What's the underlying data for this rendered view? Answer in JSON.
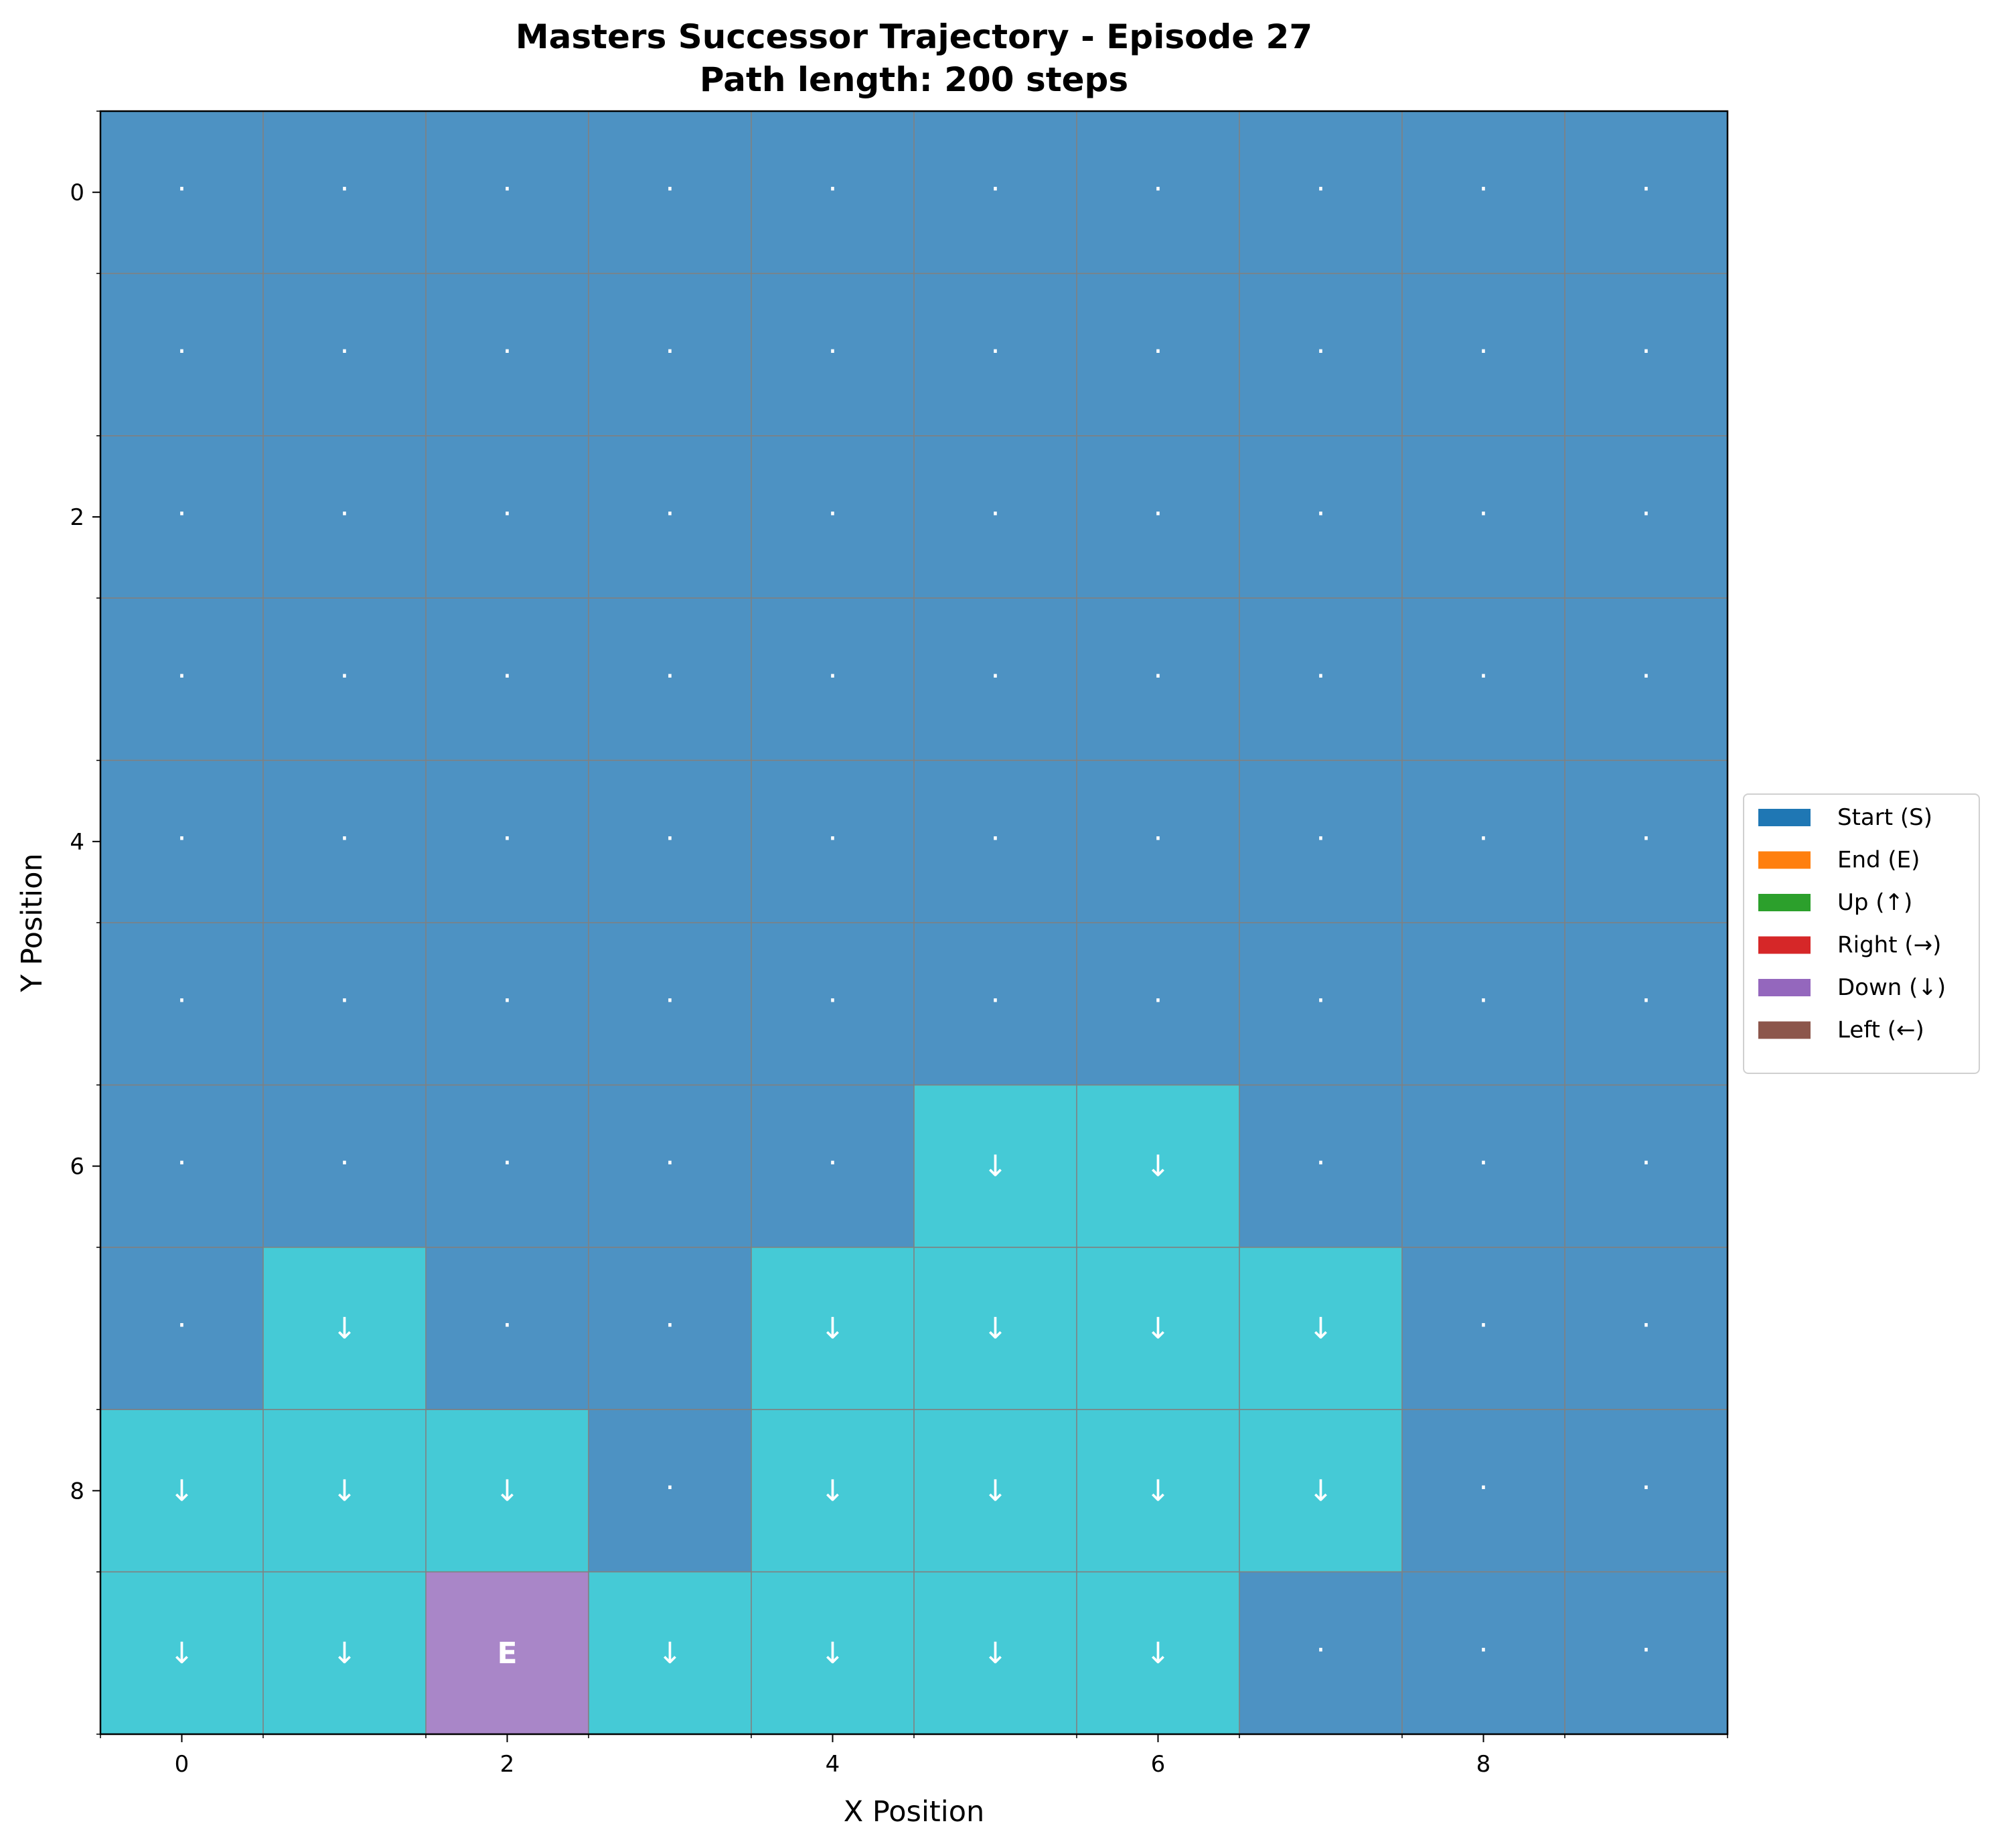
{
  "chart_data": {
    "type": "heatmap",
    "title_lines": [
      "Masters Successor Trajectory - Episode 27",
      "Path length: 200 steps"
    ],
    "xlabel": "X Position",
    "ylabel": "Y Position",
    "x_ticks": [
      "0",
      "2",
      "4",
      "6",
      "8"
    ],
    "y_ticks": [
      "0",
      "2",
      "4",
      "6",
      "8"
    ],
    "x_range": [
      -0.5,
      9.5
    ],
    "y_range": [
      -0.5,
      9.5
    ],
    "y_axis_direction": "top-to-bottom",
    "grid": true,
    "cell_glyphs": {
      "unvisited": "·",
      "down": "↓",
      "end": "E"
    },
    "cell_colors": {
      "unvisited": "#4d92c3",
      "path": "#45cad6",
      "end": "#a986c8"
    },
    "grid_cells": [
      [
        ".",
        ".",
        ".",
        ".",
        ".",
        ".",
        ".",
        ".",
        ".",
        "."
      ],
      [
        ".",
        ".",
        ".",
        ".",
        ".",
        ".",
        ".",
        ".",
        ".",
        "."
      ],
      [
        ".",
        ".",
        ".",
        ".",
        ".",
        ".",
        ".",
        ".",
        ".",
        "."
      ],
      [
        ".",
        ".",
        ".",
        ".",
        ".",
        ".",
        ".",
        ".",
        ".",
        "."
      ],
      [
        ".",
        ".",
        ".",
        ".",
        ".",
        ".",
        ".",
        ".",
        ".",
        "."
      ],
      [
        ".",
        ".",
        ".",
        ".",
        ".",
        ".",
        ".",
        ".",
        ".",
        "."
      ],
      [
        ".",
        ".",
        ".",
        ".",
        ".",
        "D",
        "D",
        ".",
        ".",
        "."
      ],
      [
        ".",
        "D",
        ".",
        ".",
        "D",
        "D",
        "D",
        "D",
        ".",
        "."
      ],
      [
        "D",
        "D",
        "D",
        ".",
        "D",
        "D",
        "D",
        "D",
        ".",
        "."
      ],
      [
        "D",
        "D",
        "E",
        "D",
        "D",
        "D",
        "D",
        ".",
        ".",
        "."
      ]
    ],
    "legend": {
      "placement": "center-right",
      "entries": [
        {
          "label": "Start (S)",
          "color": "#1f77b4"
        },
        {
          "label": "End (E)",
          "color": "#ff7f0e"
        },
        {
          "label": "Up (↑)",
          "color": "#2ca02c"
        },
        {
          "label": "Right (→)",
          "color": "#d62728"
        },
        {
          "label": "Down (↓)",
          "color": "#9467bd"
        },
        {
          "label": "Left (←)",
          "color": "#8c564b"
        }
      ]
    }
  }
}
